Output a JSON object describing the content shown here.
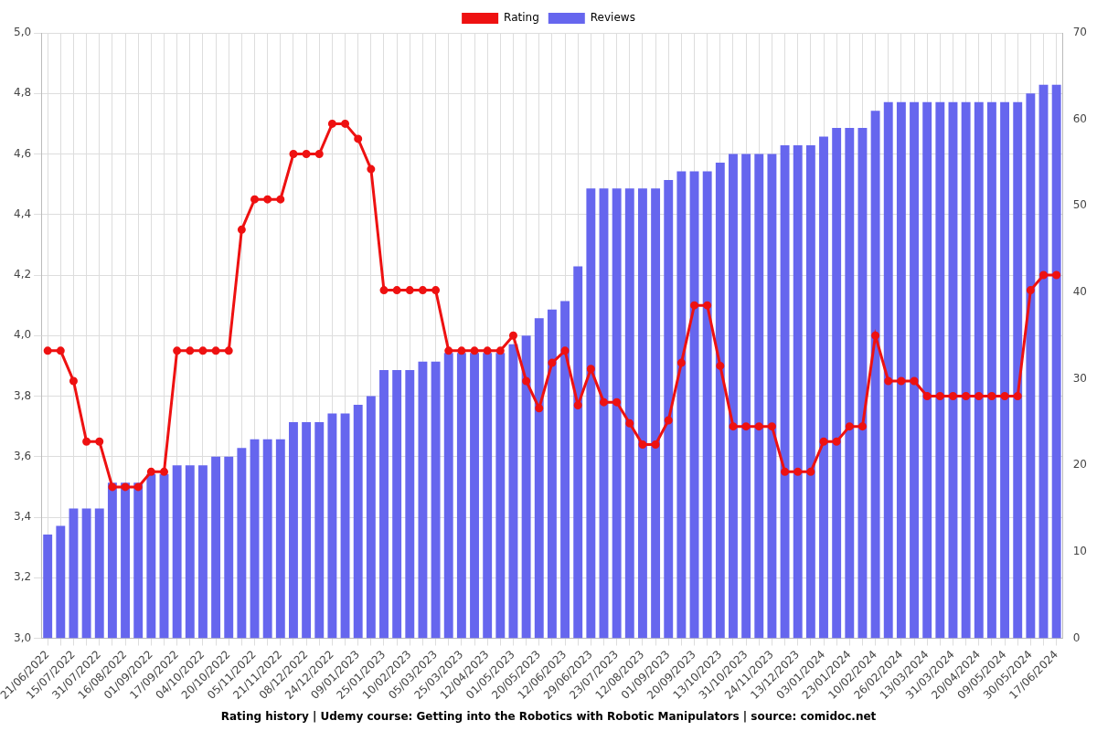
{
  "chart_data": {
    "type": "bar",
    "title": "Rating history | Udemy course: Getting into the Robotics with Robotic Manipulators | source: comidoc.net",
    "categories": [
      "21/06/2022",
      null,
      "15/07/2022",
      null,
      "31/07/2022",
      null,
      "16/08/2022",
      null,
      "01/09/2022",
      null,
      "17/09/2022",
      null,
      "04/10/2022",
      null,
      "20/10/2022",
      null,
      "05/11/2022",
      null,
      "21/11/2022",
      null,
      "08/12/2022",
      null,
      "24/12/2022",
      null,
      "09/01/2023",
      null,
      "25/01/2023",
      null,
      "10/02/2023",
      null,
      "05/03/2023",
      null,
      "25/03/2023",
      null,
      "12/04/2023",
      null,
      "01/05/2023",
      null,
      "20/05/2023",
      null,
      "12/06/2023",
      null,
      "29/06/2023",
      null,
      "23/07/2023",
      null,
      "12/08/2023",
      null,
      "01/09/2023",
      null,
      "20/09/2023",
      null,
      "13/10/2023",
      null,
      "31/10/2023",
      null,
      "24/11/2023",
      null,
      "13/12/2023",
      null,
      "03/01/2024",
      null,
      "23/01/2024",
      null,
      "10/02/2024",
      null,
      "26/02/2024",
      null,
      "13/03/2024",
      null,
      "31/03/2024",
      null,
      "20/04/2024",
      null,
      "09/05/2024",
      null,
      "30/05/2024",
      null,
      "17/06/2024"
    ],
    "series": [
      {
        "name": "Rating",
        "type": "line",
        "color": "#ee1111",
        "marker": "circle",
        "line_style": "solid",
        "axis": "y",
        "values": [
          3.95,
          3.95,
          3.85,
          3.65,
          3.65,
          3.5,
          3.5,
          3.5,
          3.55,
          3.55,
          3.95,
          3.95,
          3.95,
          3.95,
          3.95,
          4.35,
          4.45,
          4.45,
          4.45,
          4.6,
          4.6,
          4.6,
          4.7,
          4.7,
          4.65,
          4.55,
          4.15,
          4.15,
          4.15,
          4.15,
          4.15,
          3.95,
          3.95,
          3.95,
          3.95,
          3.95,
          4.0,
          3.85,
          3.76,
          3.91,
          3.95,
          3.77,
          3.89,
          3.78,
          3.78,
          3.71,
          3.64,
          3.64,
          3.72,
          3.91,
          4.1,
          4.1,
          3.9,
          3.7,
          3.7,
          3.7,
          3.7,
          3.55,
          3.55,
          3.55,
          3.65,
          3.65,
          3.7,
          3.7,
          4.0,
          3.85,
          3.85,
          3.85,
          3.8,
          3.8,
          3.8,
          3.8,
          3.8,
          3.8,
          3.8,
          3.8,
          4.15,
          4.2,
          4.2
        ]
      },
      {
        "name": "Reviews",
        "type": "bar",
        "color": "#6666ee",
        "axis": "y2",
        "values": [
          12,
          13,
          15,
          15,
          15,
          18,
          18,
          18,
          19,
          19,
          20,
          20,
          20,
          21,
          21,
          22,
          23,
          23,
          23,
          25,
          25,
          25,
          26,
          26,
          27,
          28,
          31,
          31,
          31,
          32,
          32,
          33,
          33,
          33,
          33,
          33,
          34,
          35,
          37,
          38,
          39,
          43,
          52,
          52,
          52,
          52,
          52,
          52,
          53,
          54,
          54,
          54,
          55,
          56,
          56,
          56,
          56,
          57,
          57,
          57,
          58,
          59,
          59,
          59,
          61,
          62,
          62,
          62,
          62,
          62,
          62,
          62,
          62,
          62,
          62,
          62,
          63,
          64,
          64
        ]
      }
    ],
    "ylim": [
      3.0,
      5.0
    ],
    "yticks": [
      {
        "value": 3.0,
        "label": "3,0"
      },
      {
        "value": 3.2,
        "label": "3,2"
      },
      {
        "value": 3.4,
        "label": "3,4"
      },
      {
        "value": 3.6,
        "label": "3,6"
      },
      {
        "value": 3.8,
        "label": "3,8"
      },
      {
        "value": 4.0,
        "label": "4,0"
      },
      {
        "value": 4.2,
        "label": "4,2"
      },
      {
        "value": 4.4,
        "label": "4,4"
      },
      {
        "value": 4.6,
        "label": "4,6"
      },
      {
        "value": 4.8,
        "label": "4,8"
      },
      {
        "value": 5.0,
        "label": "5,0"
      }
    ],
    "y2lim": [
      0,
      70
    ],
    "y2ticks": [
      0,
      10,
      20,
      30,
      40,
      50,
      60,
      70
    ],
    "grid": true,
    "legend": "top"
  }
}
